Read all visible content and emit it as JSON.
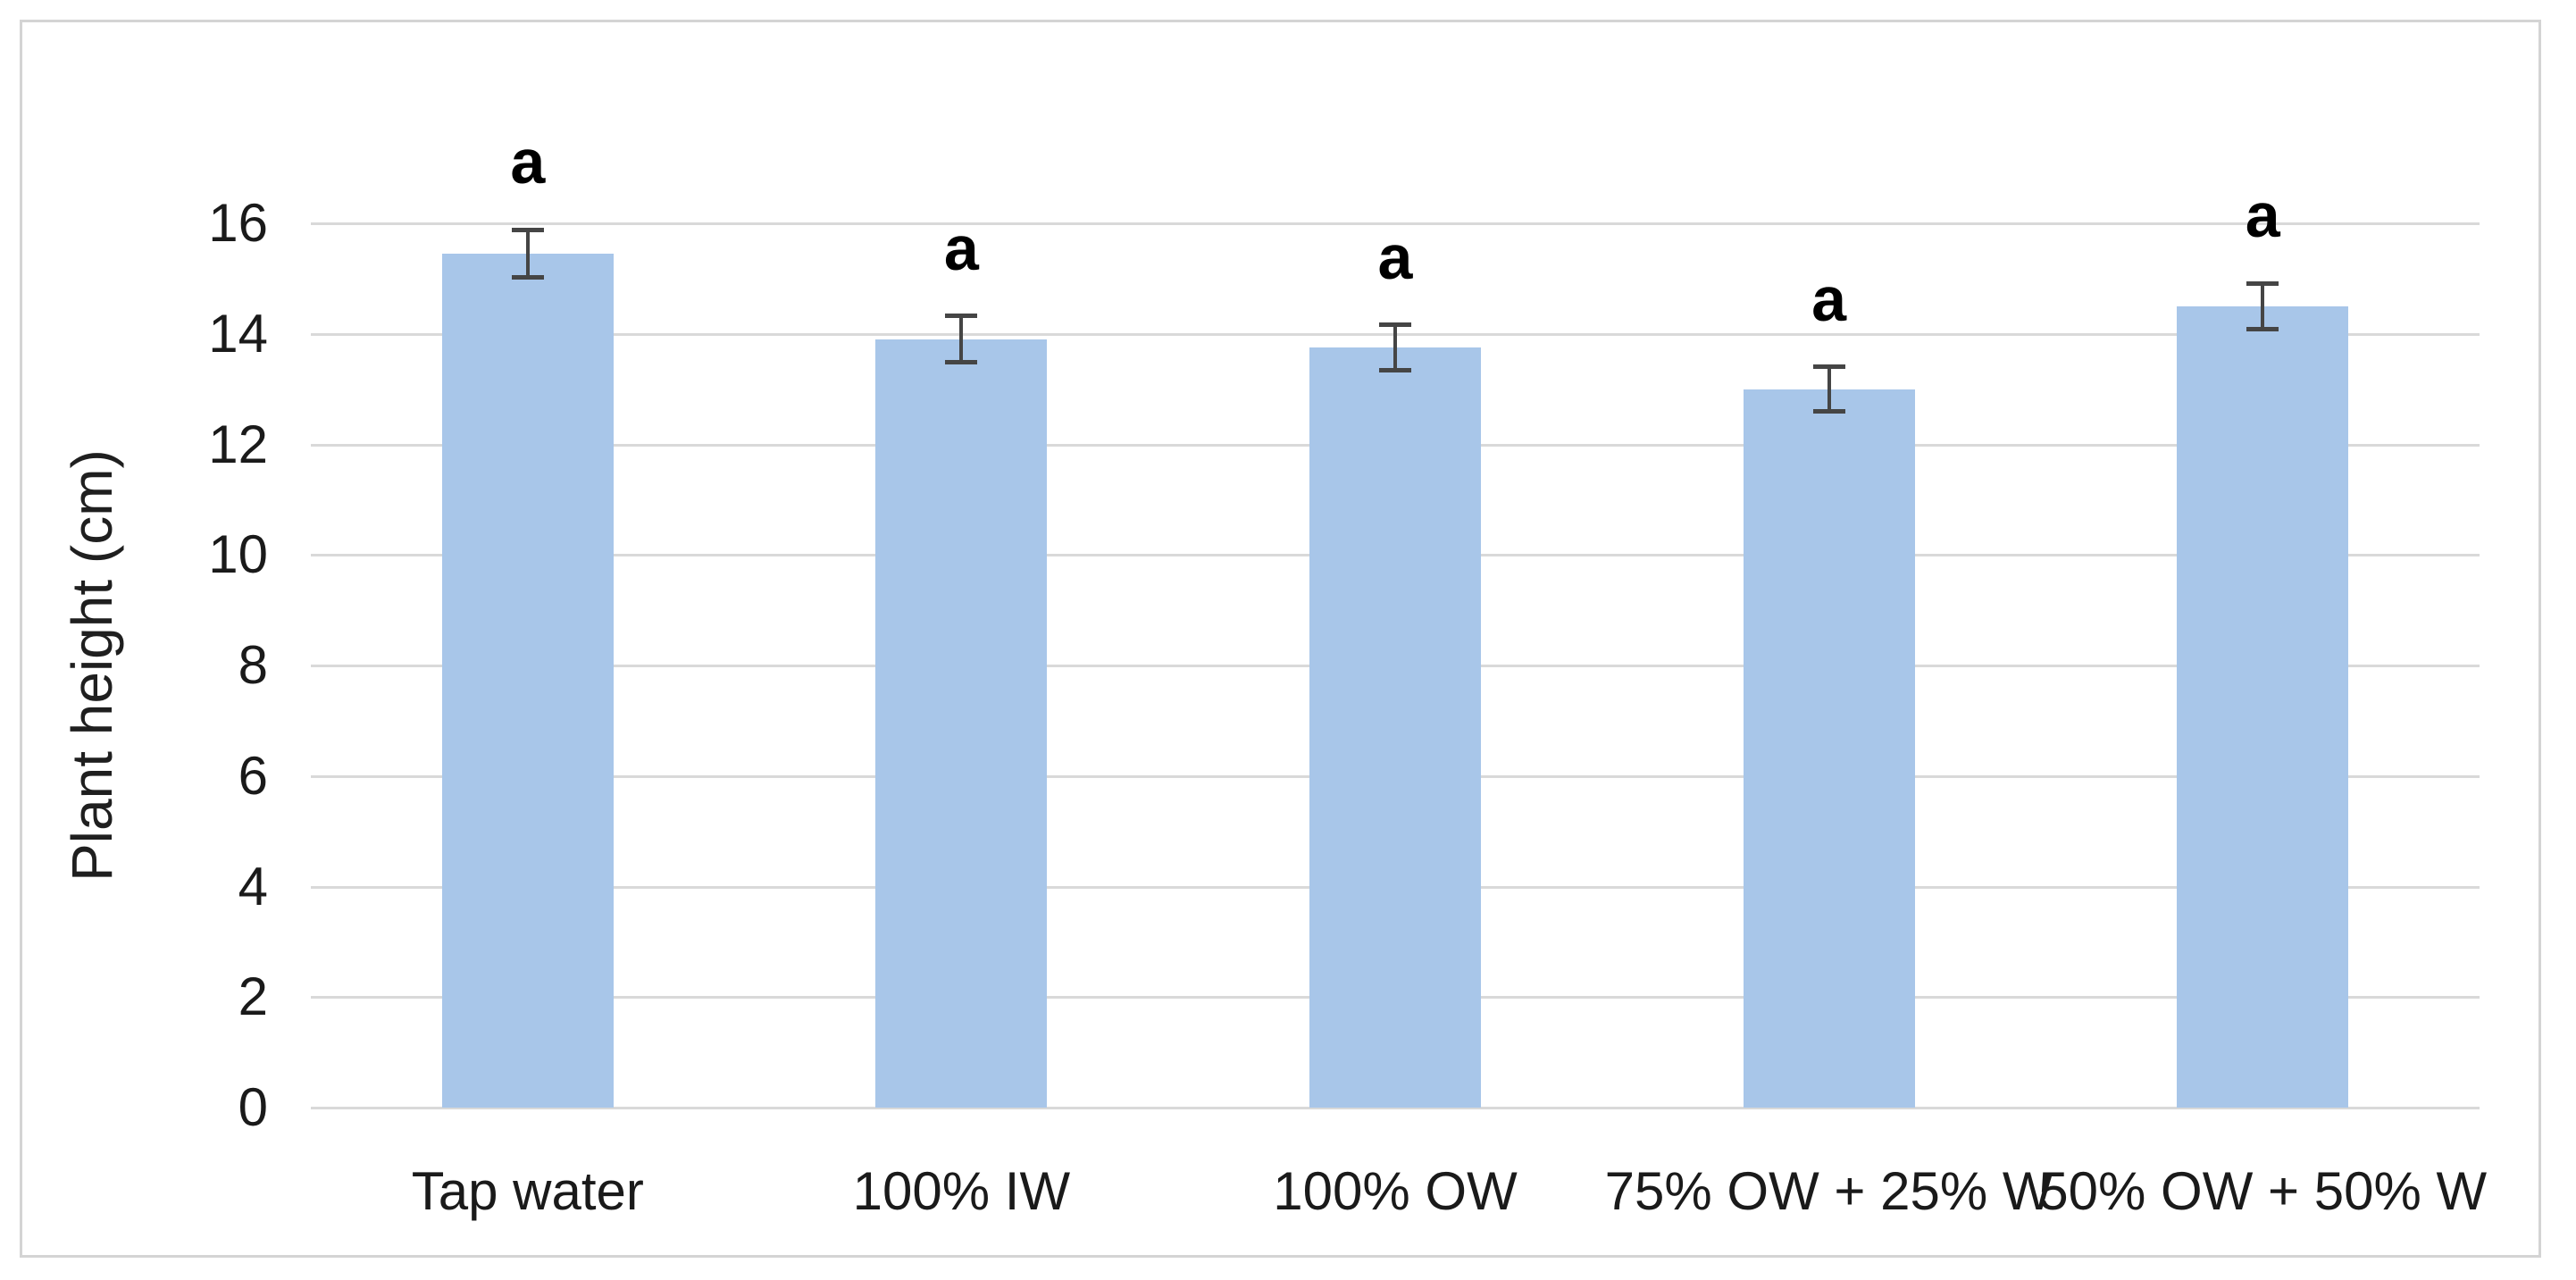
{
  "chart_data": {
    "type": "bar",
    "title": "",
    "xlabel": "",
    "ylabel": "Plant height (cm)",
    "ylim": [
      0,
      16
    ],
    "yticks": [
      0,
      2,
      4,
      6,
      8,
      10,
      12,
      14,
      16
    ],
    "grid": true,
    "legend": "none",
    "categories": [
      "Tap water",
      "100% IW",
      "100% OW",
      "75% OW + 25% W",
      "50% OW + 50% W"
    ],
    "series": [
      {
        "name": "Plant height",
        "values": [
          15.45,
          13.9,
          13.75,
          13.0,
          14.5
        ],
        "errors": [
          0.43,
          0.42,
          0.41,
          0.4,
          0.41
        ],
        "sig_labels": [
          "a",
          "a",
          "a",
          "a",
          "a"
        ]
      }
    ],
    "colors": {
      "bar_fill": "#a8c6e9",
      "gridline": "#d9d9d9",
      "error_bar": "#454545",
      "axis_text": "#1a1a1a",
      "frame_border": "#d4d4d4",
      "background": "#ffffff"
    }
  }
}
